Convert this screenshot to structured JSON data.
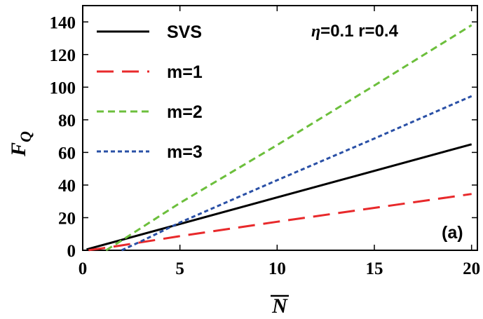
{
  "chart_data": {
    "type": "line",
    "xlabel": "N",
    "ylabel_main": "F",
    "ylabel_sub": "Q",
    "xlim": [
      0,
      20.3
    ],
    "ylim": [
      0,
      150
    ],
    "xticks": [
      0,
      5,
      10,
      15,
      20
    ],
    "yticks": [
      0,
      20,
      40,
      60,
      80,
      100,
      120,
      140
    ],
    "annotation": {
      "eta": "η",
      "rest": "=0.1 r=0.4"
    },
    "panel_label": "(a)",
    "legend_position": "top-left",
    "series": [
      {
        "name": "SVS",
        "color": "#000000",
        "dash": "solid",
        "x": [
          0.2,
          20
        ],
        "y": [
          0.5,
          65
        ]
      },
      {
        "name": "m=1",
        "color": "#e8292b",
        "dash": "long",
        "x": [
          0.3,
          1,
          2,
          5,
          10,
          15,
          20
        ],
        "y": [
          0.1,
          1.2,
          3.0,
          8.7,
          17.5,
          26,
          34.5
        ]
      },
      {
        "name": "m=2",
        "color": "#6cbf3c",
        "dash": "medium",
        "x": [
          1.2,
          2,
          5,
          10,
          15,
          20
        ],
        "y": [
          0,
          6,
          29,
          64.5,
          101,
          138
        ]
      },
      {
        "name": "m=3",
        "color": "#2a50a6",
        "dash": "short",
        "x": [
          2.0,
          3,
          5,
          10,
          15,
          20
        ],
        "y": [
          0,
          5.5,
          17,
          43,
          68.5,
          94.5
        ]
      }
    ]
  }
}
